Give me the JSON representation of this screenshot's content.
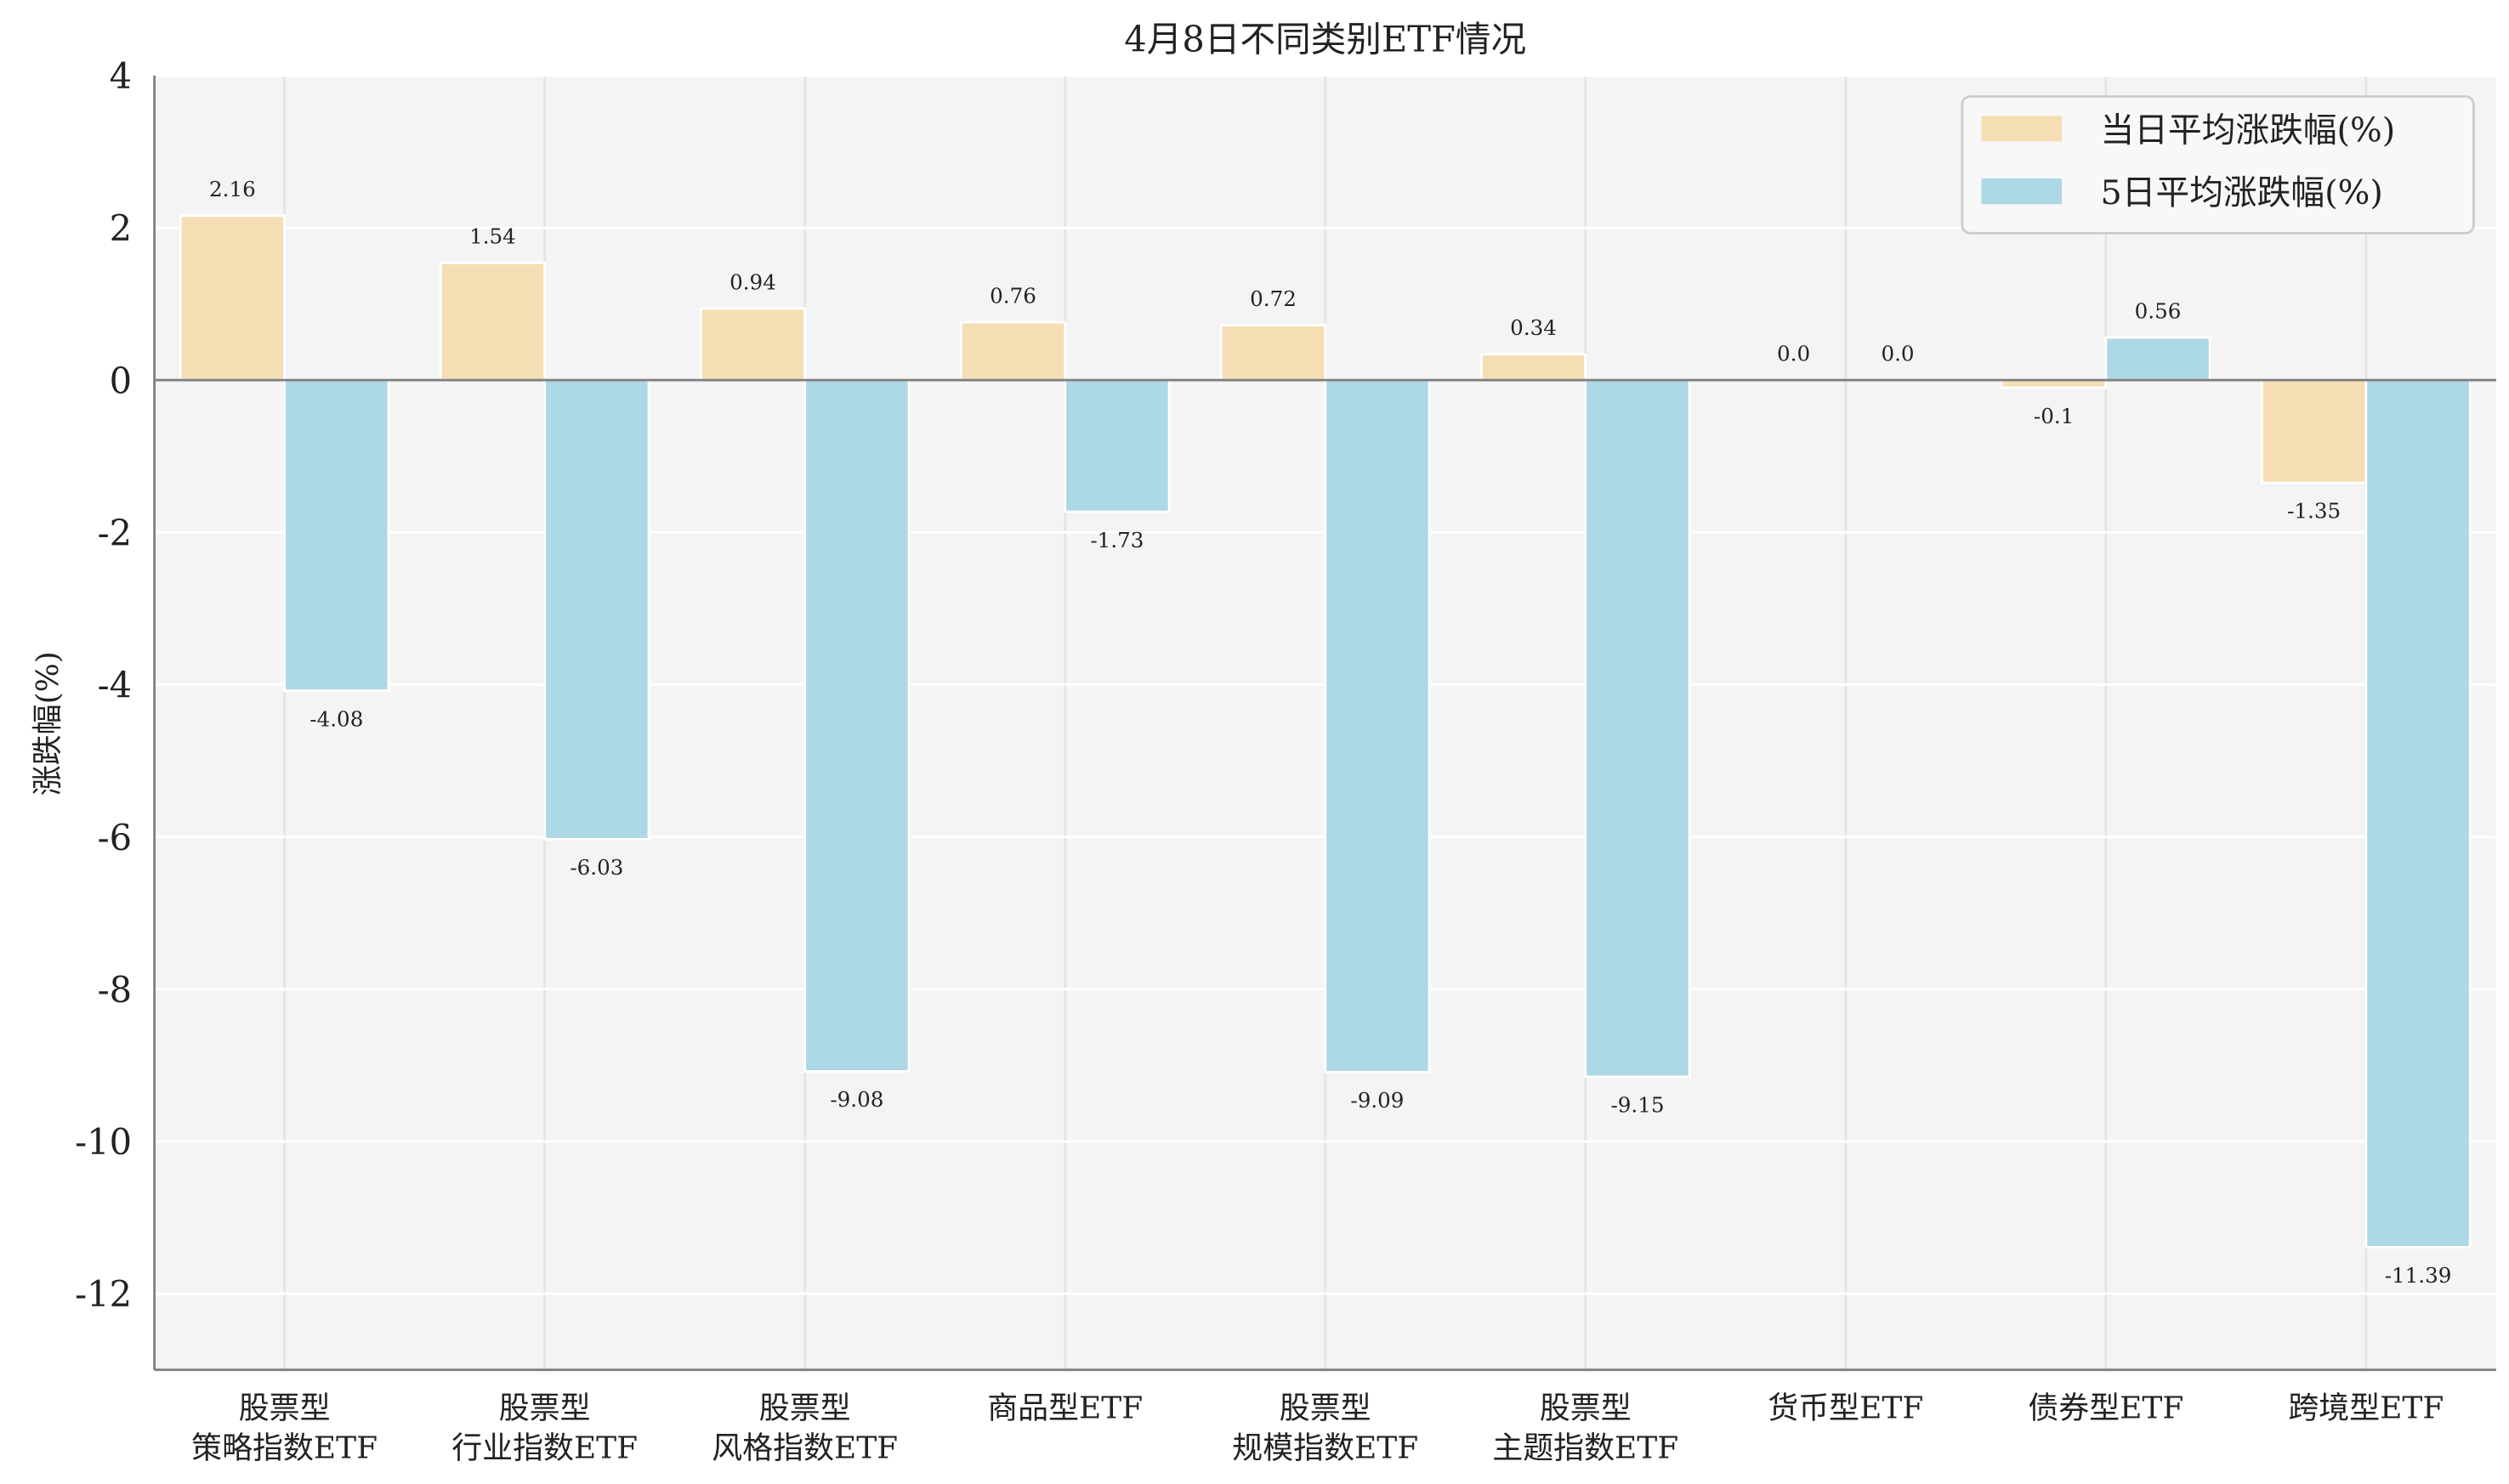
{
  "chart_data": {
    "type": "bar",
    "title": "4月8日不同类别ETF情况",
    "xlabel": "",
    "ylabel": "涨跌幅(%)",
    "ylim": [
      -13,
      4
    ],
    "yticks": [
      4,
      2,
      0,
      -2,
      -4,
      -6,
      -8,
      -10,
      -12
    ],
    "grid": true,
    "legend_position": "top-right",
    "categories": [
      [
        "股票型",
        "策略指数ETF"
      ],
      [
        "股票型",
        "行业指数ETF"
      ],
      [
        "股票型",
        "风格指数ETF"
      ],
      [
        "商品型ETF"
      ],
      [
        "股票型",
        "规模指数ETF"
      ],
      [
        "股票型",
        "主题指数ETF"
      ],
      [
        "货币型ETF"
      ],
      [
        "债券型ETF"
      ],
      [
        "跨境型ETF"
      ]
    ],
    "series": [
      {
        "name": "当日平均涨跌幅(%)",
        "color": "#F5DEB3",
        "values": [
          2.16,
          1.54,
          0.94,
          0.76,
          0.72,
          0.34,
          0.0,
          -0.1,
          -1.35
        ],
        "labels": [
          "2.16",
          "1.54",
          "0.94",
          "0.76",
          "0.72",
          "0.34",
          "0.0",
          "-0.1",
          "-1.35"
        ]
      },
      {
        "name": "5日平均涨跌幅(%)",
        "color": "#ADD8E6",
        "values": [
          -4.08,
          -6.03,
          -9.08,
          -1.73,
          -9.09,
          -9.15,
          0.0,
          0.56,
          -11.39
        ],
        "labels": [
          "-4.08",
          "-6.03",
          "-9.08",
          "-1.73",
          "-9.09",
          "-9.15",
          "0.0",
          "0.56",
          "-11.39"
        ]
      }
    ]
  }
}
